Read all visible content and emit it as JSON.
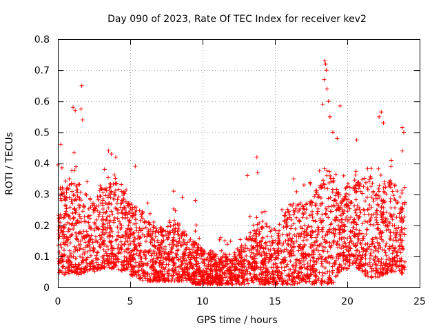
{
  "chart_data": {
    "type": "scatter",
    "title": "Day 090 of 2023, Rate Of TEC Index for receiver kev2",
    "xlabel": "GPS time / hours",
    "ylabel": "ROTI / TECUs",
    "xlim": [
      0,
      25
    ],
    "ylim": [
      0,
      0.8
    ],
    "x_ticks": [
      0,
      5,
      10,
      15,
      20,
      25
    ],
    "x_tick_labels": [
      "0",
      "5",
      "10",
      "15",
      "20",
      "25"
    ],
    "y_ticks": [
      0,
      0.1,
      0.2,
      0.3,
      0.4,
      0.5,
      0.6,
      0.7,
      0.8
    ],
    "y_tick_labels": [
      "0",
      "0.1",
      "0.2",
      "0.3",
      "0.4",
      "0.5",
      "0.6",
      "0.7",
      "0.8"
    ],
    "grid": true,
    "marker": "+",
    "color": "#ff0000",
    "envelope": {
      "hours": [
        0,
        0.5,
        1,
        1.5,
        2,
        2.5,
        3,
        3.5,
        4,
        4.5,
        5,
        5.5,
        6,
        6.5,
        7,
        7.5,
        8,
        8.5,
        9,
        9.5,
        10,
        10.5,
        11,
        11.5,
        12,
        12.5,
        13,
        13.5,
        14,
        14.5,
        15,
        15.5,
        16,
        16.5,
        17,
        17.5,
        18,
        18.5,
        19,
        19.5,
        20,
        20.5,
        21,
        21.5,
        22,
        22.5,
        23,
        23.5,
        24
      ],
      "typical_max": [
        0.36,
        0.3,
        0.4,
        0.34,
        0.3,
        0.28,
        0.32,
        0.33,
        0.37,
        0.32,
        0.27,
        0.26,
        0.24,
        0.2,
        0.2,
        0.18,
        0.22,
        0.2,
        0.17,
        0.15,
        0.12,
        0.12,
        0.11,
        0.11,
        0.11,
        0.13,
        0.16,
        0.19,
        0.22,
        0.2,
        0.19,
        0.22,
        0.27,
        0.29,
        0.27,
        0.28,
        0.33,
        0.4,
        0.36,
        0.3,
        0.34,
        0.33,
        0.36,
        0.38,
        0.32,
        0.35,
        0.36,
        0.31,
        0.33
      ],
      "typical_min": [
        0.05,
        0.04,
        0.05,
        0.04,
        0.05,
        0.05,
        0.06,
        0.06,
        0.06,
        0.05,
        0.04,
        0.03,
        0.02,
        0.02,
        0.02,
        0.02,
        0.02,
        0.02,
        0.02,
        0.01,
        0.01,
        0.01,
        0.01,
        0.01,
        0.01,
        0.01,
        0.01,
        0.01,
        0.01,
        0.01,
        0.01,
        0.01,
        0.01,
        0.01,
        0.02,
        0.01,
        0.01,
        0.01,
        0.01,
        0.05,
        0.06,
        0.07,
        0.05,
        0.03,
        0.03,
        0.04,
        0.05,
        0.05,
        0.04
      ]
    },
    "notable_points": [
      {
        "x": 0.2,
        "y": 0.46
      },
      {
        "x": 1.05,
        "y": 0.58
      },
      {
        "x": 1.2,
        "y": 0.57
      },
      {
        "x": 1.65,
        "y": 0.65
      },
      {
        "x": 1.6,
        "y": 0.575
      },
      {
        "x": 1.7,
        "y": 0.54
      },
      {
        "x": 3.5,
        "y": 0.44
      },
      {
        "x": 3.7,
        "y": 0.43
      },
      {
        "x": 4.0,
        "y": 0.42
      },
      {
        "x": 5.35,
        "y": 0.39
      },
      {
        "x": 8.0,
        "y": 0.31
      },
      {
        "x": 8.6,
        "y": 0.29
      },
      {
        "x": 9.5,
        "y": 0.28
      },
      {
        "x": 13.1,
        "y": 0.36
      },
      {
        "x": 13.75,
        "y": 0.42
      },
      {
        "x": 13.8,
        "y": 0.37
      },
      {
        "x": 16.3,
        "y": 0.35
      },
      {
        "x": 17.0,
        "y": 0.33
      },
      {
        "x": 18.3,
        "y": 0.59
      },
      {
        "x": 18.45,
        "y": 0.73
      },
      {
        "x": 18.5,
        "y": 0.72
      },
      {
        "x": 18.55,
        "y": 0.7
      },
      {
        "x": 18.4,
        "y": 0.67
      },
      {
        "x": 18.6,
        "y": 0.64
      },
      {
        "x": 18.7,
        "y": 0.6
      },
      {
        "x": 18.8,
        "y": 0.55
      },
      {
        "x": 19.0,
        "y": 0.5
      },
      {
        "x": 19.3,
        "y": 0.48
      },
      {
        "x": 19.5,
        "y": 0.585
      },
      {
        "x": 20.65,
        "y": 0.475
      },
      {
        "x": 22.2,
        "y": 0.55
      },
      {
        "x": 22.35,
        "y": 0.565
      },
      {
        "x": 22.5,
        "y": 0.53
      },
      {
        "x": 23.8,
        "y": 0.515
      },
      {
        "x": 23.9,
        "y": 0.5
      },
      {
        "x": 23.8,
        "y": 0.44
      }
    ]
  }
}
